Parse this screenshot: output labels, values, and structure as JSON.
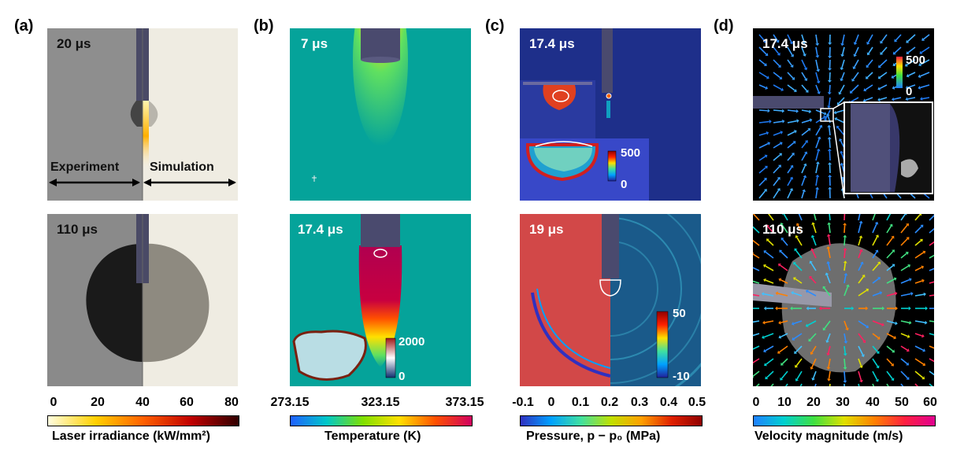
{
  "panels": {
    "a": {
      "label": "(a)",
      "top_time": "20 μs",
      "bottom_time": "110 μs",
      "experiment_label": "Experiment",
      "simulation_label": "Simulation",
      "colorbar": {
        "ticks": [
          "0",
          "20",
          "40",
          "60",
          "80"
        ],
        "title": "Laser irradiance  (kW/mm²)",
        "colors": [
          "#fffde0",
          "#ffd000",
          "#ff6000",
          "#c00000",
          "#300000"
        ]
      }
    },
    "b": {
      "label": "(b)",
      "top_time": "7 μs",
      "bottom_time": "17.4 μs",
      "inset_ticks": [
        "2000",
        "0"
      ],
      "colorbar": {
        "ticks": [
          "273.15",
          "323.15",
          "373.15"
        ],
        "title": "Temperature (K)",
        "colors": [
          "#2060ff",
          "#00c8c8",
          "#80e000",
          "#ffe000",
          "#ff5000",
          "#d00060"
        ]
      }
    },
    "c": {
      "label": "(c)",
      "top_time": "17.4 μs",
      "bottom_time": "19 μs",
      "inset_top_ticks": [
        "500",
        "0"
      ],
      "inset_bottom_ticks": [
        "50",
        "-10"
      ],
      "colorbar": {
        "ticks": [
          "-0.1",
          "0",
          "0.1",
          "0.2",
          "0.3",
          "0.4",
          "0.5"
        ],
        "title": "Pressure, p − p₀ (MPa)",
        "colors": [
          "#3030c0",
          "#00a0ff",
          "#40e0a0",
          "#c0e000",
          "#ffa000",
          "#e02000",
          "#900000"
        ]
      }
    },
    "d": {
      "label": "(d)",
      "top_time": "17.4 μs",
      "bottom_time": "110 μs",
      "inset_ticks": [
        "500",
        "0"
      ],
      "colorbar": {
        "ticks": [
          "0",
          "10",
          "20",
          "30",
          "40",
          "50",
          "60"
        ],
        "title": "Velocity magnitude (m/s)",
        "colors": [
          "#2080ff",
          "#00d0d0",
          "#40e040",
          "#e0e000",
          "#ff8000",
          "#ff2040",
          "#e00090"
        ]
      }
    }
  }
}
